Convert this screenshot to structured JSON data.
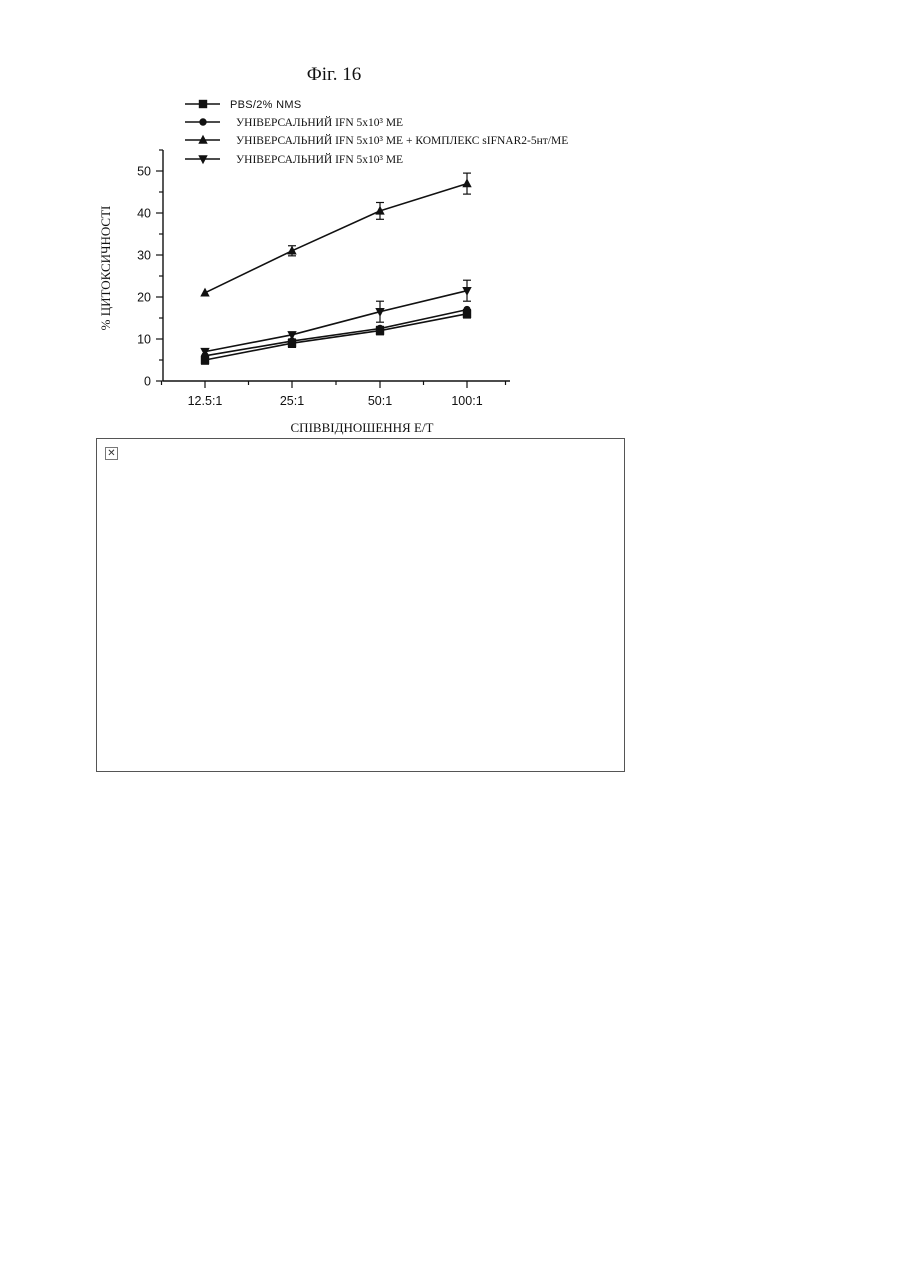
{
  "figure": {
    "title": "Фіг. 16",
    "broken_image_icon": "broken-image-icon"
  },
  "chart_data": {
    "type": "line",
    "title": "Фіг. 16",
    "xlabel": "СПІВВІДНОШЕННЯ E/T",
    "ylabel": "% ЦИТОКСИЧНОСТІ",
    "categories": [
      "12.5:1",
      "25:1",
      "50:1",
      "100:1"
    ],
    "ylim": [
      0,
      55
    ],
    "yticks": [
      0,
      10,
      20,
      30,
      40,
      50
    ],
    "grid": false,
    "legend_position": "top",
    "series": [
      {
        "name": "PBS/2% NMS",
        "marker": "square",
        "values": [
          5,
          9,
          12,
          16
        ],
        "errors": [
          1,
          1,
          1,
          1
        ]
      },
      {
        "name": "УНІВЕРСАЛЬНИЙ IFN 5x10³ МЕ",
        "marker": "circle",
        "values": [
          6,
          9.5,
          12.5,
          17
        ],
        "errors": [
          0,
          0,
          0,
          0
        ]
      },
      {
        "name": "УНІВЕРСАЛЬНИЙ IFN 5x10³ МЕ + КОМПЛЕКС sIFNAR2-5нт/МЕ",
        "marker": "triangle-up",
        "values": [
          21,
          31,
          40.5,
          47
        ],
        "errors": [
          0,
          1.2,
          2,
          2.5
        ]
      },
      {
        "name": "УНІВЕРСАЛЬНИЙ IFN 5x10³ МЕ",
        "marker": "triangle-down",
        "values": [
          7,
          11,
          16.5,
          21.5
        ],
        "errors": [
          0,
          0,
          2.5,
          2.5
        ]
      }
    ]
  }
}
